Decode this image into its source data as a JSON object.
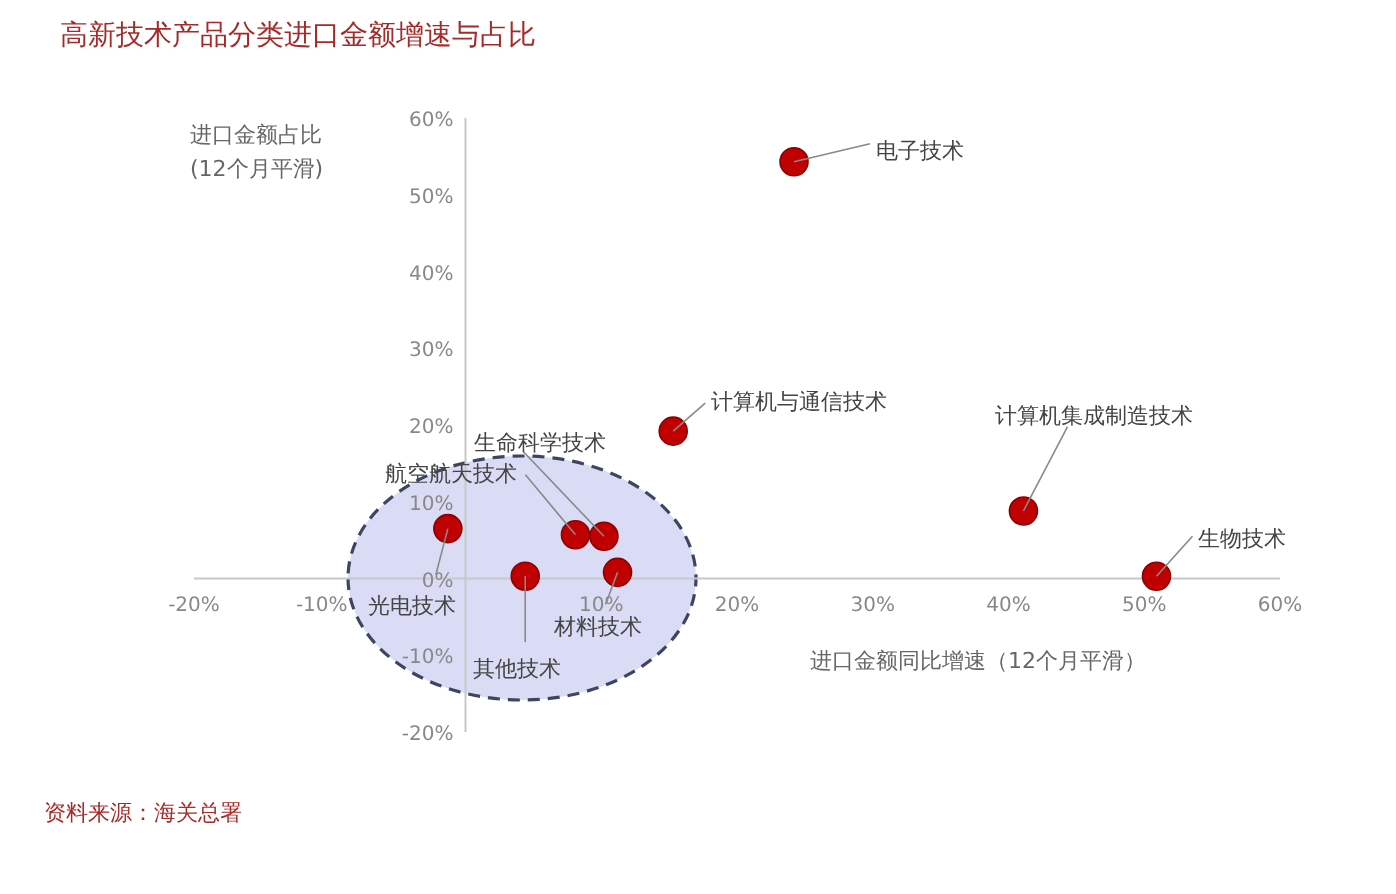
{
  "chart_data": {
    "type": "scatter",
    "title": "高新技术产品分类进口金额增速与占比",
    "xlabel": "进口金额同比增速（12个月平滑）",
    "ylabel": "进口金额占比\n(12个月平滑)",
    "series": [
      {
        "color": "#c00000",
        "x": [
          24.2,
          15.3,
          41.1,
          50.9,
          -1.3,
          8.1,
          10.2,
          11.2,
          4.4
        ],
        "values": [
          54.3,
          19.2,
          8.8,
          0.3,
          6.5,
          5.7,
          5.5,
          0.8,
          0.3
        ]
      }
    ],
    "xlim": [
      -20,
      60
    ],
    "ylim": [
      -20,
      60
    ],
    "xticks": [
      {
        "value": -20,
        "label": "-20%"
      },
      {
        "value": -10,
        "label": "-10%"
      },
      {
        "value": 10,
        "label": "10%"
      },
      {
        "value": 20,
        "label": "20%"
      },
      {
        "value": 30,
        "label": "30%"
      },
      {
        "value": 40,
        "label": "40%"
      },
      {
        "value": 50,
        "label": "50%"
      },
      {
        "value": 60,
        "label": "60%"
      }
    ],
    "yticks": [
      {
        "value": -20,
        "label": "-20%"
      },
      {
        "value": -10,
        "label": "-10%"
      },
      {
        "value": 0,
        "label": "0%"
      },
      {
        "value": 10,
        "label": "10%"
      },
      {
        "value": 20,
        "label": "20%"
      },
      {
        "value": 30,
        "label": "30%"
      },
      {
        "value": 40,
        "label": "40%"
      },
      {
        "value": 50,
        "label": "50%"
      },
      {
        "value": 60,
        "label": "60%"
      }
    ],
    "grid": false,
    "marker": "circle",
    "annotations": [
      {
        "text": "电子技术",
        "x": 24.2,
        "y": 54.3
      },
      {
        "text": "计算机与通信技术",
        "x": 15.3,
        "y": 19.2
      },
      {
        "text": "计算机集成制造技术",
        "x": 41.1,
        "y": 8.8
      },
      {
        "text": "生物技术",
        "x": 50.9,
        "y": 0.3
      },
      {
        "text": "光电技术",
        "x": -1.3,
        "y": 6.5
      },
      {
        "text": "航空航天技术",
        "x": 8.1,
        "y": 5.7
      },
      {
        "text": "生命科学技术",
        "x": 10.2,
        "y": 5.5
      },
      {
        "text": "材料技术",
        "x": 11.2,
        "y": 0.8
      },
      {
        "text": "其他技术",
        "x": 4.4,
        "y": 0.3
      },
      "资料来源：海关总署"
    ]
  }
}
